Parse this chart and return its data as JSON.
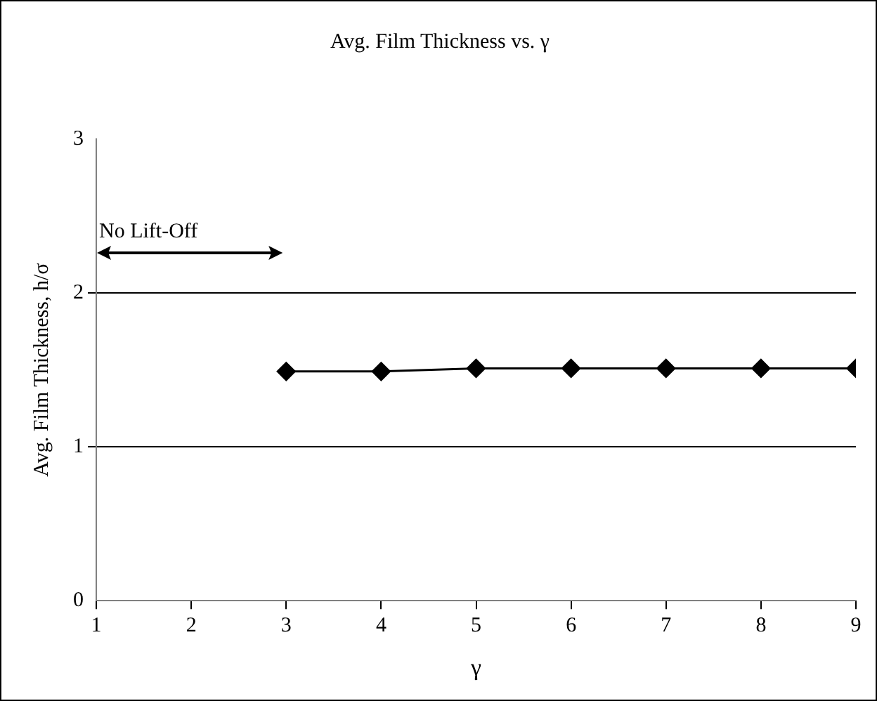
{
  "chart_data": {
    "type": "line",
    "title": "Avg. Film Thickness vs. γ",
    "xlabel": "γ",
    "ylabel": "Avg. Film Thickness, h/σ",
    "x": [
      3,
      4,
      5,
      6,
      7,
      8,
      9
    ],
    "series": [
      {
        "color": "#000000",
        "values": [
          1.49,
          1.49,
          1.51,
          1.51,
          1.51,
          1.51,
          1.51
        ]
      }
    ],
    "xlim": [
      1,
      9
    ],
    "xticks": [
      1,
      2,
      3,
      4,
      5,
      6,
      7,
      8,
      9
    ],
    "ylim": [
      0,
      3
    ],
    "yticks": [
      0,
      1,
      2,
      3
    ],
    "grid": "y",
    "legend": false,
    "marker": "diamond",
    "line_style": "solid",
    "annotations": [
      "No Lift-Off"
    ]
  }
}
